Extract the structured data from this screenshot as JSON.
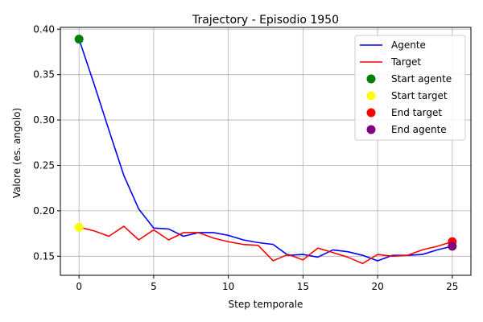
{
  "chart_data": {
    "type": "line",
    "title": "Trajectory - Episodio 1950",
    "xlabel": "Step temporale",
    "ylabel": "Valore (es. angolo)",
    "xlim": [
      -1.25,
      26.25
    ],
    "ylim": [
      0.129,
      0.402
    ],
    "xticks": [
      0,
      5,
      10,
      15,
      20,
      25
    ],
    "yticks": [
      0.15,
      0.2,
      0.25,
      0.3,
      0.35,
      0.4
    ],
    "ytick_labels": [
      "0.15",
      "0.20",
      "0.25",
      "0.30",
      "0.35",
      "0.40"
    ],
    "grid": true,
    "legend_position": "top-right",
    "x": [
      0,
      1,
      2,
      3,
      4,
      5,
      6,
      7,
      8,
      9,
      10,
      11,
      12,
      13,
      14,
      15,
      16,
      17,
      18,
      19,
      20,
      21,
      22,
      23,
      24,
      25
    ],
    "series": [
      {
        "name": "Agente",
        "color": "#0000ff",
        "values": [
          0.389,
          0.34,
          0.289,
          0.239,
          0.202,
          0.181,
          0.18,
          0.172,
          0.176,
          0.176,
          0.173,
          0.168,
          0.165,
          0.163,
          0.151,
          0.152,
          0.149,
          0.157,
          0.155,
          0.151,
          0.145,
          0.151,
          0.151,
          0.152,
          0.157,
          0.161
        ]
      },
      {
        "name": "Target",
        "color": "#ff0000",
        "values": [
          0.182,
          0.178,
          0.172,
          0.183,
          0.168,
          0.179,
          0.168,
          0.176,
          0.176,
          0.17,
          0.166,
          0.163,
          0.162,
          0.145,
          0.152,
          0.146,
          0.159,
          0.154,
          0.149,
          0.142,
          0.152,
          0.15,
          0.151,
          0.157,
          0.161,
          0.166
        ]
      }
    ],
    "markers": [
      {
        "name": "Start agente",
        "color": "#008000",
        "x": 0,
        "y": 0.389
      },
      {
        "name": "Start target",
        "color": "#ffff00",
        "x": 0,
        "y": 0.182
      },
      {
        "name": "End target",
        "color": "#ff0000",
        "x": 25,
        "y": 0.166
      },
      {
        "name": "End agente",
        "color": "#800080",
        "x": 25,
        "y": 0.161
      }
    ]
  }
}
